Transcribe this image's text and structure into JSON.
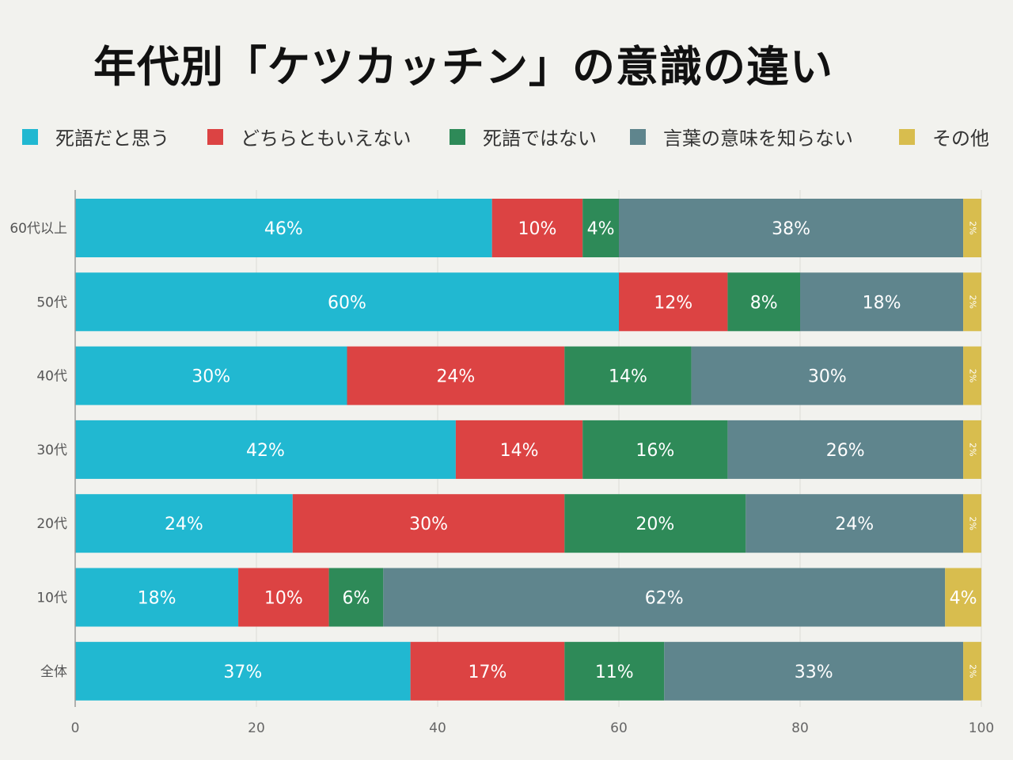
{
  "title": "年代別「ケツカッチン」の意識の違い",
  "chart_data": {
    "type": "bar",
    "orientation": "horizontal",
    "stacked": true,
    "title": "年代別「ケツカッチン」の意識の違い",
    "xlabel": "",
    "ylabel": "",
    "xlim": [
      0,
      100
    ],
    "xticks": [
      "0",
      "20",
      "40",
      "60",
      "80",
      "100"
    ],
    "grid": true,
    "legend_position": "top",
    "categories": [
      "60代以上",
      "50代",
      "40代",
      "30代",
      "20代",
      "10代",
      "全体"
    ],
    "series": [
      {
        "name": "死語だと思う",
        "color": "#21b8d1",
        "values": [
          46,
          60,
          30,
          42,
          24,
          18,
          37
        ],
        "labels": [
          "46%",
          "60%",
          "30%",
          "42%",
          "24%",
          "18%",
          "37%"
        ]
      },
      {
        "name": "どちらともいえない",
        "color": "#dc4343",
        "values": [
          10,
          12,
          24,
          14,
          30,
          10,
          17
        ],
        "labels": [
          "10%",
          "12%",
          "24%",
          "14%",
          "30%",
          "10%",
          "17%"
        ]
      },
      {
        "name": "死語ではない",
        "color": "#2e8a58",
        "values": [
          4,
          8,
          14,
          16,
          20,
          6,
          11
        ],
        "labels": [
          "4%",
          "8%",
          "14%",
          "16%",
          "20%",
          "6%",
          "11%"
        ]
      },
      {
        "name": "言葉の意味を知らない",
        "color": "#5f858d",
        "values": [
          38,
          18,
          30,
          26,
          24,
          62,
          33
        ],
        "labels": [
          "38%",
          "18%",
          "30%",
          "26%",
          "24%",
          "62%",
          "33%"
        ]
      },
      {
        "name": "その他",
        "color": "#d8bd4e",
        "values": [
          2,
          2,
          2,
          2,
          2,
          4,
          2
        ],
        "labels": [
          "2%",
          "2%",
          "2%",
          "2%",
          "2%",
          "4%",
          "2%"
        ]
      }
    ]
  }
}
